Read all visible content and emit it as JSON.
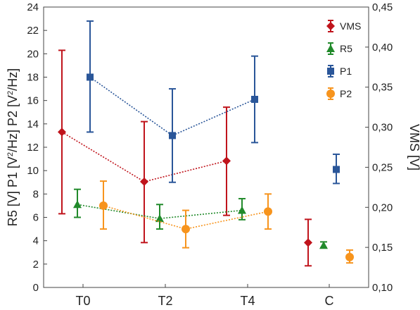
{
  "chart_data": {
    "type": "line",
    "categories": [
      "T0",
      "T2",
      "T4",
      "C"
    ],
    "left_axis": {
      "title_parts": [
        {
          "base": "R5 [V]",
          "sup": "",
          "tail": ""
        },
        {
          "base": "P1 [V",
          "sup": "2",
          "tail": "/Hz]"
        },
        {
          "base": "P2 [V",
          "sup": "2",
          "tail": "/Hz]"
        }
      ],
      "ylim": [
        0,
        24
      ],
      "tick_values": [
        0,
        2,
        4,
        6,
        8,
        10,
        12,
        14,
        16,
        18,
        20,
        22,
        24
      ],
      "tick_labels": [
        "0",
        "2",
        "4",
        "6",
        "8",
        "10",
        "12",
        "14",
        "16",
        "18",
        "20",
        "22",
        "24"
      ]
    },
    "right_axis": {
      "title": "VMS [V]",
      "ylim": [
        0.1,
        0.45
      ],
      "tick_values": [
        0.1,
        0.15,
        0.2,
        0.25,
        0.3,
        0.35,
        0.4,
        0.45
      ],
      "tick_labels": [
        "0,10",
        "0,15",
        "0,20",
        "0,25",
        "0,30",
        "0,35",
        "0,40",
        "0,45"
      ]
    },
    "series": [
      {
        "name": "VMS",
        "axis": "right",
        "marker": "diamond",
        "color": "#c0141c",
        "points": [
          {
            "cat": "T0",
            "value": 0.294,
            "low": 0.192,
            "high": 0.396
          },
          {
            "cat": "T2",
            "value": 0.232,
            "low": 0.156,
            "high": 0.307
          },
          {
            "cat": "T4",
            "value": 0.258,
            "low": 0.19,
            "high": 0.325
          },
          {
            "cat": "C",
            "value": 0.156,
            "low": 0.127,
            "high": 0.185
          }
        ],
        "connected": [
          "T0",
          "T2",
          "T4"
        ]
      },
      {
        "name": "R5",
        "axis": "left",
        "marker": "triangle",
        "color": "#218a2b",
        "points": [
          {
            "cat": "T0",
            "value": 7.1,
            "low": 6.0,
            "high": 8.4
          },
          {
            "cat": "T2",
            "value": 5.9,
            "low": 5.0,
            "high": 7.1
          },
          {
            "cat": "T4",
            "value": 6.6,
            "low": 5.8,
            "high": 7.6
          },
          {
            "cat": "C",
            "value": 3.6,
            "low": 3.4,
            "high": 3.9
          }
        ],
        "connected": [
          "T0",
          "T2",
          "T4"
        ]
      },
      {
        "name": "P1",
        "axis": "left",
        "marker": "square",
        "color": "#2a5699",
        "points": [
          {
            "cat": "T0",
            "value": 18.0,
            "low": 13.3,
            "high": 22.8
          },
          {
            "cat": "T2",
            "value": 13.0,
            "low": 9.0,
            "high": 17.0
          },
          {
            "cat": "T4",
            "value": 16.1,
            "low": 12.4,
            "high": 19.8
          },
          {
            "cat": "C",
            "value": 10.1,
            "low": 8.9,
            "high": 11.4
          }
        ],
        "connected": [
          "T0",
          "T2",
          "T4"
        ]
      },
      {
        "name": "P2",
        "axis": "left",
        "marker": "circle",
        "color": "#f7941d",
        "points": [
          {
            "cat": "T0",
            "value": 7.0,
            "low": 5.0,
            "high": 9.1
          },
          {
            "cat": "T2",
            "value": 5.0,
            "low": 3.4,
            "high": 6.6
          },
          {
            "cat": "T4",
            "value": 6.5,
            "low": 5.0,
            "high": 8.0
          },
          {
            "cat": "C",
            "value": 2.6,
            "low": 2.1,
            "high": 3.2
          }
        ],
        "connected": [
          "T0",
          "T2",
          "T4"
        ]
      }
    ],
    "legend_position": "top-right",
    "grid": false
  }
}
